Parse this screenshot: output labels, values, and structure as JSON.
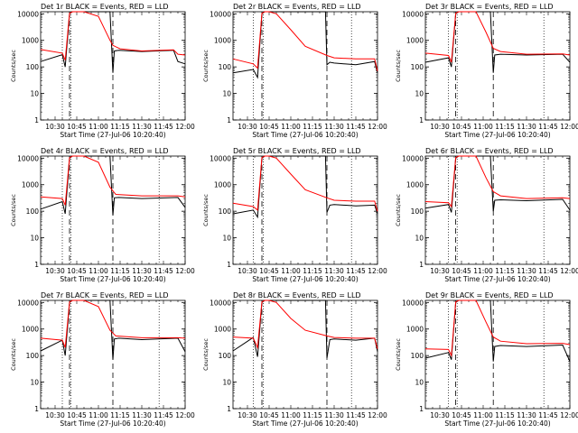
{
  "colors": {
    "events": "#000000",
    "lld": "#ff0000",
    "background": "#ffffff"
  },
  "xtick_labels": [
    "10:30",
    "10:45",
    "11:00",
    "11:15",
    "11:30",
    "11:45",
    "12:00"
  ],
  "ytick_labels": [
    "1",
    "10",
    "100",
    "1000",
    "10000"
  ],
  "axis_labels": {
    "x": "Start Time (27-Jul-06 10:20:40)",
    "y": "Counts/sec"
  },
  "chart_data": [
    {
      "type": "line",
      "title": "Det 1r BLACK = Events, RED = LLD",
      "xlim": [
        "10:20",
        "12:00"
      ],
      "ylim": [
        1,
        12000
      ],
      "yscale": "log",
      "vlines_dotted": [
        "10:35",
        "10:41",
        "11:42"
      ],
      "vlines_dashed": [
        "10:40",
        "11:10"
      ],
      "series": [
        {
          "name": "Events",
          "x": [
            "10:20",
            "10:35",
            "10:37",
            "10:40",
            "10:42",
            "10:45",
            "11:08",
            "11:10",
            "11:11",
            "11:14",
            "11:30",
            "11:52",
            "11:55",
            "12:00"
          ],
          "y": [
            160,
            290,
            100,
            10000,
            12000,
            12000,
            12000,
            60,
            400,
            420,
            380,
            420,
            160,
            130
          ]
        },
        {
          "name": "LLD",
          "x": [
            "10:20",
            "10:35",
            "10:37",
            "10:40",
            "10:42",
            "10:45",
            "10:50",
            "11:00",
            "11:08",
            "11:10",
            "11:15",
            "11:30",
            "11:52",
            "11:55",
            "12:00"
          ],
          "y": [
            450,
            330,
            180,
            10500,
            12000,
            12000,
            12000,
            8000,
            1000,
            650,
            480,
            400,
            440,
            300,
            280
          ]
        }
      ]
    },
    {
      "type": "line",
      "title": "Det 2r BLACK = Events, RED = LLD",
      "xlim": [
        "10:20",
        "12:00"
      ],
      "ylim": [
        1,
        12000
      ],
      "yscale": "log",
      "vlines_dotted": [
        "10:34",
        "10:41",
        "11:42"
      ],
      "vlines_dashed": [
        "10:40",
        "11:25"
      ],
      "series": [
        {
          "name": "Events",
          "x": [
            "10:20",
            "10:34",
            "10:37",
            "10:40",
            "10:42",
            "10:45",
            "11:24",
            "11:25",
            "11:27",
            "11:30",
            "11:45",
            "11:58",
            "12:00"
          ],
          "y": [
            60,
            80,
            40,
            10000,
            12000,
            12000,
            12000,
            120,
            150,
            140,
            120,
            160,
            60
          ]
        },
        {
          "name": "LLD",
          "x": [
            "10:20",
            "10:34",
            "10:37",
            "10:40",
            "10:42",
            "10:45",
            "10:50",
            "11:00",
            "11:10",
            "11:25",
            "11:30",
            "11:45",
            "11:58",
            "12:00"
          ],
          "y": [
            200,
            130,
            90,
            10500,
            12000,
            12000,
            10000,
            2500,
            600,
            270,
            220,
            200,
            200,
            70
          ]
        }
      ]
    },
    {
      "type": "line",
      "title": "Det 3r BLACK = Events, RED = LLD",
      "xlim": [
        "10:20",
        "12:00"
      ],
      "ylim": [
        1,
        12000
      ],
      "yscale": "log",
      "vlines_dotted": [
        "10:36",
        "10:42",
        "11:42"
      ],
      "vlines_dashed": [
        "10:41",
        "11:07"
      ],
      "series": [
        {
          "name": "Events",
          "x": [
            "10:20",
            "10:36",
            "10:38",
            "10:41",
            "10:43",
            "10:45",
            "11:05",
            "11:07",
            "11:08",
            "11:12",
            "11:30",
            "11:55",
            "12:00"
          ],
          "y": [
            150,
            220,
            100,
            10000,
            12000,
            12000,
            12000,
            60,
            280,
            300,
            280,
            300,
            150
          ]
        },
        {
          "name": "LLD",
          "x": [
            "10:20",
            "10:36",
            "10:38",
            "10:41",
            "10:43",
            "10:45",
            "10:55",
            "11:02",
            "11:07",
            "11:12",
            "11:30",
            "11:55",
            "12:00"
          ],
          "y": [
            330,
            270,
            150,
            10500,
            12000,
            12000,
            12000,
            2000,
            500,
            380,
            300,
            310,
            280
          ]
        }
      ]
    },
    {
      "type": "line",
      "title": "Det 4r BLACK = Events, RED = LLD",
      "xlim": [
        "10:20",
        "12:00"
      ],
      "ylim": [
        1,
        12000
      ],
      "yscale": "log",
      "vlines_dotted": [
        "10:35",
        "10:41",
        "11:42"
      ],
      "vlines_dashed": [
        "10:40",
        "11:10"
      ],
      "series": [
        {
          "name": "Events",
          "x": [
            "10:20",
            "10:35",
            "10:37",
            "10:40",
            "10:42",
            "10:45",
            "11:08",
            "11:10",
            "11:11",
            "11:14",
            "11:30",
            "11:55",
            "12:00"
          ],
          "y": [
            120,
            230,
            80,
            10000,
            12000,
            12000,
            12000,
            70,
            320,
            330,
            300,
            330,
            140
          ]
        },
        {
          "name": "LLD",
          "x": [
            "10:20",
            "10:35",
            "10:37",
            "10:40",
            "10:42",
            "10:45",
            "10:50",
            "11:00",
            "11:08",
            "11:12",
            "11:30",
            "11:55",
            "12:00"
          ],
          "y": [
            350,
            300,
            170,
            10500,
            12000,
            12000,
            12000,
            7000,
            800,
            430,
            380,
            380,
            350
          ]
        }
      ]
    },
    {
      "type": "line",
      "title": "Det 5r BLACK = Events, RED = LLD",
      "xlim": [
        "10:20",
        "12:00"
      ],
      "ylim": [
        1,
        12000
      ],
      "yscale": "log",
      "vlines_dotted": [
        "10:34",
        "10:41",
        "11:42"
      ],
      "vlines_dashed": [
        "10:40",
        "11:25"
      ],
      "series": [
        {
          "name": "Events",
          "x": [
            "10:20",
            "10:34",
            "10:37",
            "10:40",
            "10:42",
            "10:45",
            "11:24",
            "11:25",
            "11:27",
            "11:30",
            "11:45",
            "11:58",
            "12:00"
          ],
          "y": [
            80,
            110,
            60,
            10000,
            12000,
            12000,
            12000,
            90,
            170,
            180,
            160,
            170,
            80
          ]
        },
        {
          "name": "LLD",
          "x": [
            "10:20",
            "10:34",
            "10:37",
            "10:40",
            "10:42",
            "10:45",
            "10:50",
            "11:00",
            "11:10",
            "11:25",
            "11:30",
            "11:45",
            "11:58",
            "12:00"
          ],
          "y": [
            200,
            150,
            110,
            10500,
            12000,
            12000,
            10000,
            2500,
            650,
            320,
            260,
            240,
            240,
            100
          ]
        }
      ]
    },
    {
      "type": "line",
      "title": "Det 6r BLACK = Events, RED = LLD",
      "xlim": [
        "10:20",
        "12:00"
      ],
      "ylim": [
        1,
        12000
      ],
      "yscale": "log",
      "vlines_dotted": [
        "10:36",
        "10:42",
        "11:42"
      ],
      "vlines_dashed": [
        "10:41",
        "11:07"
      ],
      "series": [
        {
          "name": "Events",
          "x": [
            "10:20",
            "10:36",
            "10:38",
            "10:41",
            "10:43",
            "10:45",
            "11:05",
            "11:07",
            "11:08",
            "11:12",
            "11:30",
            "11:55",
            "12:00"
          ],
          "y": [
            130,
            180,
            90,
            10000,
            12000,
            12000,
            12000,
            100,
            260,
            270,
            250,
            280,
            110
          ]
        },
        {
          "name": "LLD",
          "x": [
            "10:20",
            "10:36",
            "10:38",
            "10:41",
            "10:43",
            "10:45",
            "10:55",
            "11:02",
            "11:07",
            "11:12",
            "11:30",
            "11:55",
            "12:00"
          ],
          "y": [
            230,
            210,
            150,
            10500,
            12000,
            12000,
            12000,
            1800,
            550,
            380,
            300,
            320,
            300
          ]
        }
      ]
    },
    {
      "type": "line",
      "title": "Det 7r BLACK = Events, RED = LLD",
      "xlim": [
        "10:20",
        "12:00"
      ],
      "ylim": [
        1,
        12000
      ],
      "yscale": "log",
      "vlines_dotted": [
        "10:35",
        "10:41",
        "11:42"
      ],
      "vlines_dashed": [
        "10:40",
        "11:10"
      ],
      "series": [
        {
          "name": "Events",
          "x": [
            "10:20",
            "10:35",
            "10:37",
            "10:40",
            "10:42",
            "10:45",
            "11:08",
            "11:10",
            "11:11",
            "11:14",
            "11:30",
            "11:55",
            "12:00"
          ],
          "y": [
            150,
            380,
            100,
            10000,
            12000,
            12000,
            12000,
            70,
            420,
            450,
            400,
            450,
            140
          ]
        },
        {
          "name": "LLD",
          "x": [
            "10:20",
            "10:35",
            "10:37",
            "10:40",
            "10:42",
            "10:45",
            "10:50",
            "11:00",
            "11:08",
            "11:12",
            "11:30",
            "11:55",
            "12:00"
          ],
          "y": [
            450,
            380,
            200,
            10500,
            12000,
            12000,
            12000,
            7000,
            900,
            550,
            470,
            470,
            450
          ]
        }
      ]
    },
    {
      "type": "line",
      "title": "Det 8r BLACK = Events, RED = LLD",
      "xlim": [
        "10:20",
        "12:00"
      ],
      "ylim": [
        1,
        12000
      ],
      "yscale": "log",
      "vlines_dotted": [
        "10:34",
        "10:41",
        "11:42"
      ],
      "vlines_dashed": [
        "10:40",
        "11:25"
      ],
      "series": [
        {
          "name": "Events",
          "x": [
            "10:20",
            "10:34",
            "10:37",
            "10:40",
            "10:42",
            "10:45",
            "11:24",
            "11:25",
            "11:27",
            "11:30",
            "11:45",
            "11:58",
            "12:00"
          ],
          "y": [
            150,
            480,
            90,
            10000,
            12000,
            12000,
            12000,
            80,
            400,
            420,
            380,
            450,
            140
          ]
        },
        {
          "name": "LLD",
          "x": [
            "10:20",
            "10:34",
            "10:37",
            "10:40",
            "10:42",
            "10:45",
            "10:50",
            "11:00",
            "11:10",
            "11:25",
            "11:30",
            "11:45",
            "11:58",
            "12:00"
          ],
          "y": [
            500,
            450,
            200,
            10500,
            12000,
            12000,
            10000,
            2500,
            900,
            550,
            480,
            450,
            450,
            180
          ]
        }
      ]
    },
    {
      "type": "line",
      "title": "Det 9r BLACK = Events, RED = LLD",
      "xlim": [
        "10:20",
        "12:00"
      ],
      "ylim": [
        1,
        12000
      ],
      "yscale": "log",
      "vlines_dotted": [
        "10:36",
        "10:42",
        "11:42"
      ],
      "vlines_dashed": [
        "10:41",
        "11:07"
      ],
      "series": [
        {
          "name": "Events",
          "x": [
            "10:20",
            "10:36",
            "10:38",
            "10:41",
            "10:43",
            "10:45",
            "11:05",
            "11:07",
            "11:08",
            "11:12",
            "11:30",
            "11:55",
            "12:00"
          ],
          "y": [
            80,
            130,
            70,
            10000,
            12000,
            12000,
            12000,
            60,
            220,
            240,
            220,
            250,
            60
          ]
        },
        {
          "name": "LLD",
          "x": [
            "10:20",
            "10:36",
            "10:38",
            "10:41",
            "10:43",
            "10:45",
            "10:55",
            "11:02",
            "11:07",
            "11:12",
            "11:30",
            "11:55",
            "12:00"
          ],
          "y": [
            180,
            170,
            100,
            10500,
            12000,
            12000,
            12000,
            1800,
            500,
            350,
            280,
            290,
            260
          ]
        }
      ]
    }
  ]
}
